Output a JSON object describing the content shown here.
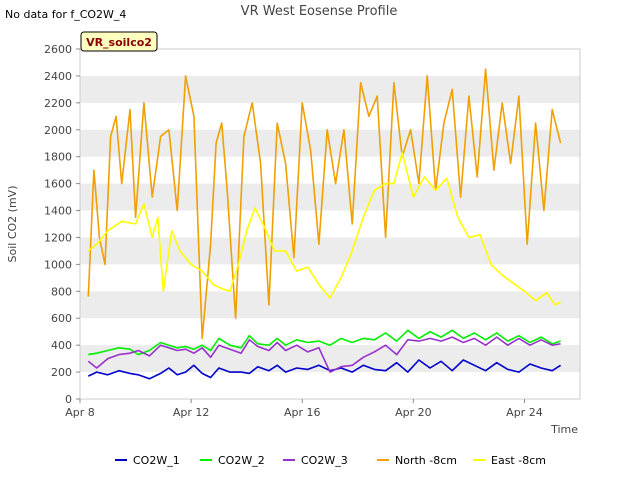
{
  "header": {
    "nodata": "No data for f_CO2W_4",
    "title": "VR West Eosense Profile",
    "site_label": "VR_soilco2"
  },
  "colors": {
    "background": "#ffffff",
    "band": "#ececec",
    "site_label_bg": "#ffffc0",
    "site_label_text": "#8b0000"
  },
  "chart_data": {
    "type": "line",
    "title": "VR West Eosense Profile",
    "xlabel": "Time",
    "ylabel": "Soil CO2 (mV)",
    "xlim": [
      8.0,
      26.0
    ],
    "ylim": [
      0,
      2600
    ],
    "x_ticks": [
      {
        "label": "Apr 8",
        "value": 8
      },
      {
        "label": "Apr 12",
        "value": 12
      },
      {
        "label": "Apr 16",
        "value": 16
      },
      {
        "label": "Apr 20",
        "value": 20
      },
      {
        "label": "Apr 24",
        "value": 24
      }
    ],
    "y_ticks": [
      0,
      200,
      400,
      600,
      800,
      1000,
      1200,
      1400,
      1600,
      1800,
      2000,
      2200,
      2400,
      2600
    ],
    "grid": "alternating horizontal bands",
    "legend_position": "bottom",
    "series": [
      {
        "name": "CO2W_1",
        "color": "#0000cc",
        "x": [
          8.3,
          8.6,
          9.0,
          9.4,
          9.8,
          10.1,
          10.5,
          10.9,
          11.2,
          11.5,
          11.8,
          12.1,
          12.4,
          12.7,
          13.0,
          13.4,
          13.8,
          14.1,
          14.4,
          14.8,
          15.1,
          15.4,
          15.8,
          16.2,
          16.6,
          17.0,
          17.4,
          17.8,
          18.2,
          18.6,
          19.0,
          19.4,
          19.8,
          20.2,
          20.6,
          21.0,
          21.4,
          21.8,
          22.2,
          22.6,
          23.0,
          23.4,
          23.8,
          24.2,
          24.6,
          25.0,
          25.3
        ],
        "y": [
          170,
          200,
          180,
          210,
          190,
          180,
          150,
          190,
          230,
          180,
          200,
          250,
          190,
          160,
          230,
          200,
          200,
          190,
          240,
          210,
          250,
          200,
          230,
          220,
          250,
          210,
          230,
          200,
          250,
          220,
          210,
          270,
          200,
          290,
          230,
          280,
          210,
          290,
          250,
          210,
          270,
          220,
          200,
          260,
          230,
          210,
          250
        ]
      },
      {
        "name": "CO2W_2",
        "color": "#00ee00",
        "x": [
          8.3,
          8.6,
          9.0,
          9.4,
          9.8,
          10.1,
          10.5,
          10.9,
          11.2,
          11.5,
          11.8,
          12.1,
          12.4,
          12.7,
          13.0,
          13.4,
          13.8,
          14.1,
          14.4,
          14.8,
          15.1,
          15.4,
          15.8,
          16.2,
          16.6,
          17.0,
          17.4,
          17.8,
          18.2,
          18.6,
          19.0,
          19.4,
          19.8,
          20.2,
          20.6,
          21.0,
          21.4,
          21.8,
          22.2,
          22.6,
          23.0,
          23.4,
          23.8,
          24.2,
          24.6,
          25.0,
          25.3
        ],
        "y": [
          330,
          340,
          360,
          380,
          370,
          330,
          360,
          420,
          400,
          380,
          390,
          370,
          400,
          360,
          450,
          400,
          380,
          470,
          410,
          400,
          450,
          400,
          440,
          420,
          430,
          400,
          450,
          420,
          450,
          440,
          490,
          430,
          510,
          450,
          500,
          460,
          510,
          450,
          490,
          440,
          490,
          430,
          470,
          420,
          460,
          410,
          430
        ]
      },
      {
        "name": "CO2W_3",
        "color": "#9932cc",
        "x": [
          8.3,
          8.6,
          9.0,
          9.4,
          9.8,
          10.1,
          10.5,
          10.9,
          11.2,
          11.5,
          11.8,
          12.1,
          12.4,
          12.7,
          13.0,
          13.4,
          13.8,
          14.1,
          14.4,
          14.8,
          15.1,
          15.4,
          15.8,
          16.2,
          16.6,
          17.0,
          17.4,
          17.8,
          18.2,
          18.6,
          19.0,
          19.4,
          19.8,
          20.2,
          20.6,
          21.0,
          21.4,
          21.8,
          22.2,
          22.6,
          23.0,
          23.4,
          23.8,
          24.2,
          24.6,
          25.0,
          25.3
        ],
        "y": [
          280,
          230,
          300,
          330,
          340,
          360,
          320,
          400,
          380,
          360,
          370,
          340,
          380,
          310,
          400,
          370,
          340,
          440,
          390,
          360,
          420,
          360,
          400,
          350,
          380,
          200,
          240,
          250,
          310,
          350,
          400,
          330,
          440,
          430,
          450,
          430,
          460,
          420,
          450,
          400,
          460,
          400,
          450,
          400,
          440,
          400,
          410
        ]
      },
      {
        "name": "North -8cm",
        "color": "#f0a000",
        "x": [
          8.3,
          8.5,
          8.7,
          8.9,
          9.1,
          9.3,
          9.5,
          9.8,
          10.0,
          10.3,
          10.6,
          10.9,
          11.2,
          11.5,
          11.8,
          12.1,
          12.4,
          12.7,
          12.9,
          13.1,
          13.3,
          13.6,
          13.9,
          14.2,
          14.5,
          14.8,
          15.1,
          15.4,
          15.7,
          16.0,
          16.3,
          16.6,
          16.9,
          17.2,
          17.5,
          17.8,
          18.1,
          18.4,
          18.7,
          19.0,
          19.3,
          19.6,
          19.9,
          20.2,
          20.5,
          20.8,
          21.1,
          21.4,
          21.7,
          22.0,
          22.3,
          22.6,
          22.9,
          23.2,
          23.5,
          23.8,
          24.1,
          24.4,
          24.7,
          25.0,
          25.3
        ],
        "y": [
          760,
          1700,
          1200,
          1000,
          1950,
          2100,
          1600,
          2150,
          1350,
          2200,
          1500,
          1950,
          2000,
          1400,
          2400,
          2100,
          450,
          1150,
          1900,
          2050,
          1550,
          600,
          1950,
          2200,
          1750,
          700,
          2050,
          1750,
          1050,
          2200,
          1850,
          1150,
          2000,
          1600,
          2000,
          1300,
          2350,
          2100,
          2250,
          1200,
          2350,
          1800,
          2000,
          1600,
          2400,
          1550,
          2050,
          2300,
          1500,
          2250,
          1650,
          2450,
          1700,
          2200,
          1750,
          2250,
          1150,
          2050,
          1400,
          2150,
          1900
        ]
      },
      {
        "name": "East -8cm",
        "color": "#ffff00",
        "x": [
          8.3,
          8.6,
          9.0,
          9.5,
          10.0,
          10.3,
          10.6,
          10.8,
          11.0,
          11.3,
          11.6,
          12.0,
          12.4,
          12.8,
          13.1,
          13.4,
          13.7,
          14.0,
          14.3,
          14.7,
          15.0,
          15.4,
          15.8,
          16.2,
          16.6,
          17.0,
          17.4,
          17.8,
          18.2,
          18.6,
          19.0,
          19.3,
          19.6,
          20.0,
          20.4,
          20.8,
          21.2,
          21.6,
          22.0,
          22.4,
          22.8,
          23.2,
          23.6,
          24.0,
          24.4,
          24.8,
          25.1,
          25.3
        ],
        "y": [
          1100,
          1150,
          1250,
          1320,
          1300,
          1450,
          1200,
          1350,
          800,
          1250,
          1100,
          1000,
          950,
          850,
          820,
          800,
          1000,
          1250,
          1420,
          1250,
          1100,
          1100,
          950,
          980,
          850,
          750,
          900,
          1100,
          1350,
          1550,
          1600,
          1600,
          1830,
          1500,
          1650,
          1550,
          1640,
          1350,
          1200,
          1220,
          1000,
          920,
          860,
          800,
          730,
          790,
          700,
          720
        ]
      }
    ]
  }
}
